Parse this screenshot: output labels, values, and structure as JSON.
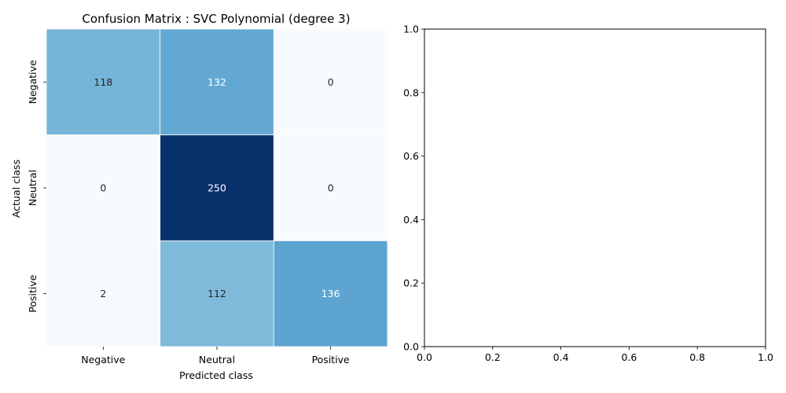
{
  "chart_data": [
    {
      "type": "heatmap",
      "title": "Confusion Matrix : SVC Polynomial (degree 3)",
      "xlabel": "Predicted class",
      "ylabel": "Actual class",
      "x_categories": [
        "Negative",
        "Neutral",
        "Positive"
      ],
      "y_categories": [
        "Negative",
        "Neutral",
        "Positive"
      ],
      "values": [
        [
          118,
          132,
          0
        ],
        [
          0,
          250,
          0
        ],
        [
          2,
          112,
          136
        ]
      ],
      "colormap": "Blues",
      "vmin": 0,
      "vmax": 250
    },
    {
      "type": "scatter",
      "title": "",
      "xlabel": "",
      "ylabel": "",
      "xlim": [
        0.0,
        1.0
      ],
      "ylim": [
        0.0,
        1.0
      ],
      "xticks": [
        "0.0",
        "0.2",
        "0.4",
        "0.6",
        "0.8",
        "1.0"
      ],
      "yticks": [
        "0.0",
        "0.2",
        "0.4",
        "0.6",
        "0.8",
        "1.0"
      ],
      "series": []
    }
  ]
}
